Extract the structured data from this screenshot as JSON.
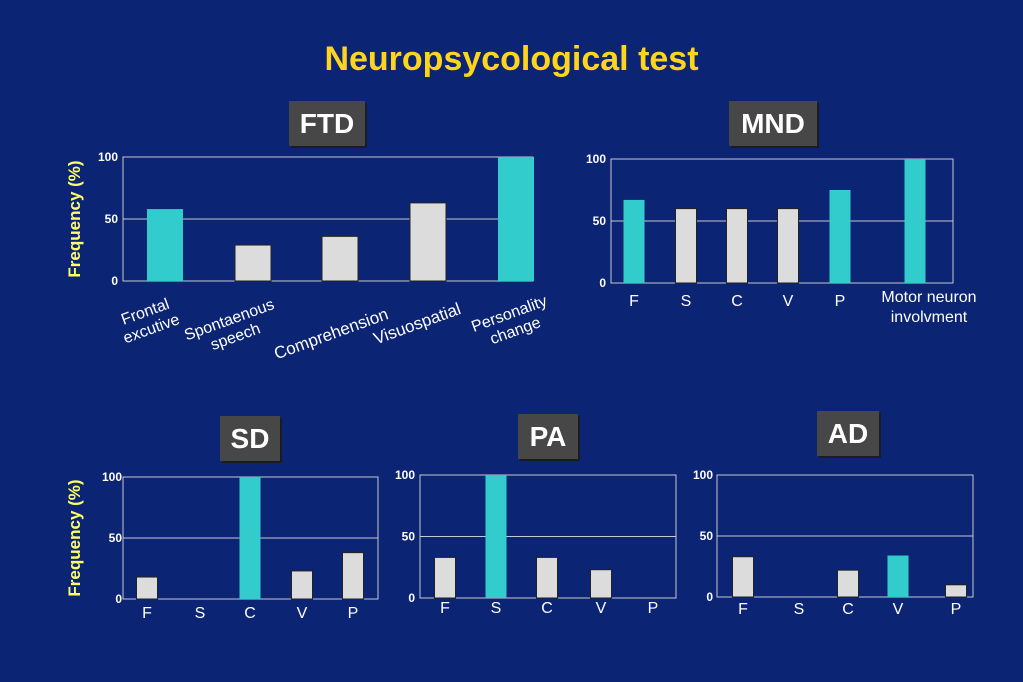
{
  "title": "Neuropsycological test",
  "colors": {
    "background": "#0b2474",
    "title": "#ffd51c",
    "highlight_bar": "#33cccc",
    "normal_bar": "#dcdcdc",
    "axis_label": "#ffff66"
  },
  "chart_data": [
    {
      "type": "bar",
      "title": "FTD",
      "ylabel": "Frequency (%)",
      "ylim": [
        0,
        100
      ],
      "yticks": [
        0,
        50,
        100
      ],
      "grid": true,
      "categories": [
        "Frontal excutive",
        "Spontaenous speech",
        "Comprehension",
        "Visuospatial",
        "Personality change"
      ],
      "values": [
        58,
        29,
        36,
        63,
        100
      ],
      "highlight": [
        true,
        false,
        false,
        false,
        true
      ]
    },
    {
      "type": "bar",
      "title": "MND",
      "ylabel": "",
      "ylim": [
        0,
        100
      ],
      "yticks": [
        0,
        50,
        100
      ],
      "grid": true,
      "categories": [
        "F",
        "S",
        "C",
        "V",
        "P",
        "Motor neuron involvment"
      ],
      "values": [
        67,
        60,
        60,
        60,
        75,
        100
      ],
      "highlight": [
        true,
        false,
        false,
        false,
        true,
        true
      ]
    },
    {
      "type": "bar",
      "title": "SD",
      "ylabel": "Frequency (%)",
      "ylim": [
        0,
        100
      ],
      "yticks": [
        0,
        50,
        100
      ],
      "grid": true,
      "categories": [
        "F",
        "S",
        "C",
        "V",
        "P"
      ],
      "values": [
        18,
        0,
        100,
        23,
        38
      ],
      "highlight": [
        false,
        false,
        true,
        false,
        false
      ]
    },
    {
      "type": "bar",
      "title": "PA",
      "ylabel": "",
      "ylim": [
        0,
        100
      ],
      "yticks": [
        0,
        50,
        100
      ],
      "grid": true,
      "categories": [
        "F",
        "S",
        "C",
        "V",
        "P"
      ],
      "values": [
        33,
        100,
        33,
        23,
        0
      ],
      "highlight": [
        false,
        true,
        false,
        false,
        false
      ]
    },
    {
      "type": "bar",
      "title": "AD",
      "ylabel": "",
      "ylim": [
        0,
        100
      ],
      "yticks": [
        0,
        50,
        100
      ],
      "grid": true,
      "categories": [
        "F",
        "S",
        "C",
        "V",
        "P"
      ],
      "values": [
        33,
        0,
        22,
        34,
        10
      ],
      "highlight": [
        false,
        false,
        false,
        true,
        false
      ]
    }
  ]
}
